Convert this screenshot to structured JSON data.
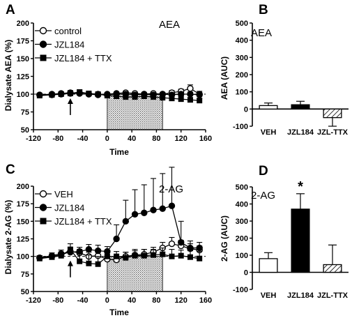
{
  "chart_data": [
    {
      "panel": "A",
      "type": "line",
      "annotation": "AEA",
      "xlabel": "Time",
      "ylabel": "Dialysate AEA (%)",
      "xlim": [
        -120,
        160
      ],
      "ylim": [
        50,
        200
      ],
      "xticks": [
        "-120",
        "-80",
        "-40",
        "0",
        "40",
        "80",
        "120",
        "160"
      ],
      "yticks": [
        "50",
        "75",
        "100",
        "125",
        "150",
        "175",
        "200"
      ],
      "shaded_interval": [
        0,
        90
      ],
      "arrow_x": -60,
      "legend_position": "top-left",
      "series": [
        {
          "name": "control",
          "marker": "open-circle",
          "x": [
            -110,
            -90,
            -75,
            -60,
            -45,
            -30,
            -15,
            0,
            15,
            30,
            45,
            60,
            75,
            90,
            105,
            120,
            135,
            150
          ],
          "y": [
            99,
            100,
            101,
            102,
            101,
            100,
            99,
            100,
            101,
            102,
            101,
            100,
            101,
            100,
            102,
            104,
            108,
            100
          ],
          "err": [
            2,
            2,
            2,
            3,
            2,
            3,
            2,
            2,
            2,
            2,
            2,
            2,
            2,
            2,
            3,
            3,
            5,
            4
          ]
        },
        {
          "name": "JZL184",
          "marker": "filled-circle",
          "x": [
            -110,
            -90,
            -75,
            -60,
            -45,
            -30,
            -15,
            0,
            15,
            30,
            45,
            60,
            75,
            90,
            105,
            120,
            135,
            150
          ],
          "y": [
            99,
            99,
            100,
            101,
            101,
            100,
            100,
            99,
            100,
            100,
            99,
            100,
            99,
            100,
            99,
            100,
            100,
            99
          ],
          "err": [
            2,
            2,
            3,
            3,
            3,
            3,
            2,
            2,
            2,
            2,
            2,
            2,
            2,
            2,
            2,
            3,
            3,
            3
          ]
        },
        {
          "name": "JZL184 + TTX",
          "marker": "filled-square",
          "x": [
            -110,
            -90,
            -75,
            -60,
            -45,
            -30,
            -15,
            0,
            15,
            30,
            45,
            60,
            75,
            90,
            105,
            120,
            135,
            150
          ],
          "y": [
            98,
            99,
            100,
            101,
            103,
            101,
            100,
            98,
            97,
            96,
            96,
            97,
            96,
            95,
            94,
            93,
            92,
            91
          ],
          "err": [
            2,
            2,
            3,
            4,
            3,
            3,
            2,
            2,
            3,
            3,
            3,
            3,
            3,
            3,
            4,
            4,
            3,
            3
          ]
        }
      ]
    },
    {
      "panel": "B",
      "type": "bar",
      "annotation": "AEA",
      "ylabel": "AEA (AUC)",
      "ylim": [
        -100,
        500
      ],
      "yticks": [
        "-100",
        "0",
        "100",
        "200",
        "300",
        "400",
        "500"
      ],
      "categories": [
        "VEH",
        "JZL184",
        "JZL-TTX"
      ],
      "values": [
        20,
        25,
        -50
      ],
      "errors": [
        15,
        20,
        50
      ],
      "styles": [
        "open",
        "filled",
        "hatched"
      ]
    },
    {
      "panel": "C",
      "type": "line",
      "annotation": "2-AG",
      "xlabel": "Time",
      "ylabel": "Dialysate 2-AG (%)",
      "xlim": [
        -120,
        160
      ],
      "ylim": [
        50,
        200
      ],
      "xticks": [
        "-120",
        "-80",
        "-40",
        "0",
        "40",
        "80",
        "120",
        "160"
      ],
      "yticks": [
        "50",
        "75",
        "100",
        "125",
        "150",
        "175",
        "200"
      ],
      "shaded_interval": [
        0,
        90
      ],
      "arrow_x": -60,
      "legend_position": "top-left",
      "series": [
        {
          "name": "VEH",
          "marker": "open-circle",
          "x": [
            -110,
            -90,
            -75,
            -60,
            -45,
            -30,
            -15,
            0,
            15,
            30,
            45,
            60,
            75,
            90,
            105,
            120,
            135,
            150
          ],
          "y": [
            98,
            100,
            102,
            107,
            105,
            100,
            101,
            96,
            95,
            100,
            102,
            103,
            106,
            112,
            118,
            115,
            111,
            109
          ],
          "err": [
            3,
            3,
            4,
            5,
            5,
            6,
            5,
            4,
            5,
            6,
            6,
            7,
            7,
            8,
            9,
            8,
            7,
            6
          ]
        },
        {
          "name": "JZL184",
          "marker": "filled-circle",
          "x": [
            -110,
            -90,
            -75,
            -60,
            -45,
            -30,
            -15,
            0,
            15,
            30,
            45,
            60,
            75,
            90,
            105,
            120,
            135,
            150
          ],
          "y": [
            98,
            101,
            104,
            106,
            107,
            110,
            108,
            107,
            125,
            150,
            160,
            162,
            166,
            168,
            172,
            120,
            112,
            112
          ],
          "err": [
            3,
            4,
            5,
            6,
            6,
            7,
            8,
            7,
            20,
            30,
            35,
            40,
            45,
            50,
            55,
            30,
            10,
            8
          ]
        },
        {
          "name": "JZL184 + TTX",
          "marker": "filled-square",
          "x": [
            -110,
            -90,
            -75,
            -60,
            -45,
            -30,
            -15,
            0,
            15,
            30,
            45,
            60,
            75,
            90,
            105,
            120,
            135,
            150
          ],
          "y": [
            97,
            99,
            101,
            110,
            93,
            90,
            89,
            100,
            100,
            98,
            101,
            101,
            102,
            103,
            100,
            101,
            99,
            97
          ],
          "err": [
            3,
            4,
            5,
            8,
            15,
            12,
            11,
            8,
            7,
            8,
            9,
            9,
            8,
            9,
            10,
            8,
            9,
            10
          ]
        }
      ]
    },
    {
      "panel": "D",
      "type": "bar",
      "annotation": "2-AG",
      "ylabel": "2-AG (AUC)",
      "ylim": [
        -100,
        500
      ],
      "yticks": [
        "-100",
        "0",
        "100",
        "200",
        "300",
        "400",
        "500"
      ],
      "categories": [
        "VEH",
        "JZL184",
        "JZL-TTX"
      ],
      "values": [
        80,
        370,
        45
      ],
      "errors": [
        35,
        90,
        115
      ],
      "styles": [
        "open",
        "filled",
        "hatched"
      ],
      "significance": [
        "",
        "*",
        ""
      ]
    }
  ]
}
